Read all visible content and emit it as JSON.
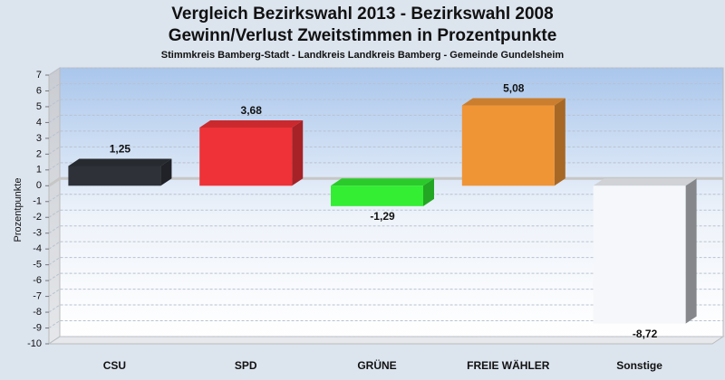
{
  "chart_data": {
    "type": "bar",
    "title": "Vergleich Bezirkswahl 2013 - Bezirkswahl 2008",
    "subtitle": "Gewinn/Verlust Zweitstimmen in Prozentpunkte",
    "caption": "Stimmkreis Bamberg-Stadt - Landkreis Landkreis Bamberg - Gemeinde Gundelsheim",
    "y_label": "Prozentpunkte",
    "categories": [
      "CSU",
      "SPD",
      "GRÜNE",
      "FREIE WÄHLER",
      "Sonstige"
    ],
    "values": [
      1.25,
      3.68,
      -1.29,
      5.08,
      -8.72
    ],
    "value_labels": [
      "1,25",
      "3,68",
      "-1,29",
      "5,08",
      "-8,72"
    ],
    "colors": [
      "#2e3238",
      "#ee3237",
      "#33ee33",
      "#ef9536",
      "#f5f7fb"
    ],
    "ylim": [
      -10,
      7
    ],
    "yticks": [
      -10,
      -9,
      -8,
      -7,
      -6,
      -5,
      -4,
      -3,
      -2,
      -1,
      0,
      1,
      2,
      3,
      4,
      5,
      6,
      7
    ],
    "grid": true
  }
}
